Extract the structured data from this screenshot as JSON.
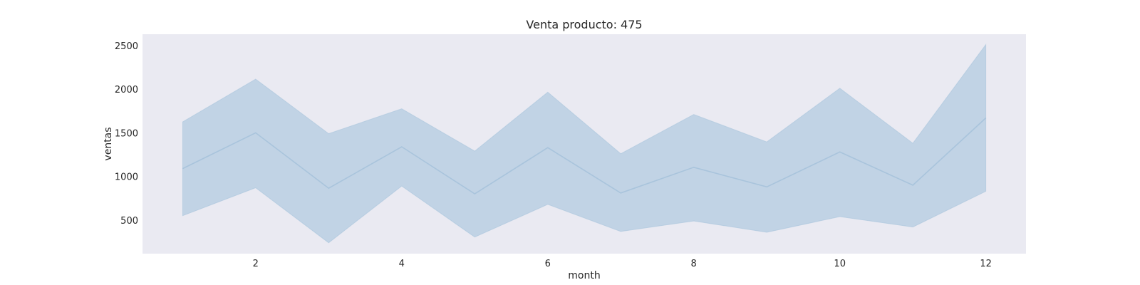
{
  "chart_data": {
    "type": "line",
    "title": "Venta producto: 475",
    "xlabel": "month",
    "ylabel": "ventas",
    "x": [
      1,
      2,
      3,
      4,
      5,
      6,
      7,
      8,
      9,
      10,
      11,
      12
    ],
    "xlim": [
      0.45,
      12.55
    ],
    "ylim": [
      115,
      2630
    ],
    "xticks": [
      2,
      4,
      6,
      8,
      10,
      12
    ],
    "yticks": [
      500,
      1000,
      1500,
      2000,
      2500
    ],
    "grid": false,
    "series": [
      {
        "values": [
          1090,
          1500,
          865,
          1340,
          800,
          1330,
          810,
          1105,
          880,
          1280,
          900,
          1670
        ],
        "band_lower": [
          550,
          870,
          240,
          890,
          305,
          680,
          370,
          490,
          360,
          540,
          420,
          830
        ],
        "band_upper": [
          1625,
          2115,
          1490,
          1775,
          1290,
          1965,
          1260,
          1710,
          1395,
          2010,
          1380,
          2510
        ]
      }
    ],
    "colors": {
      "plot_background": "#eaeaf2",
      "line": "#a9c4dc",
      "band": "#c1d3e5"
    }
  }
}
